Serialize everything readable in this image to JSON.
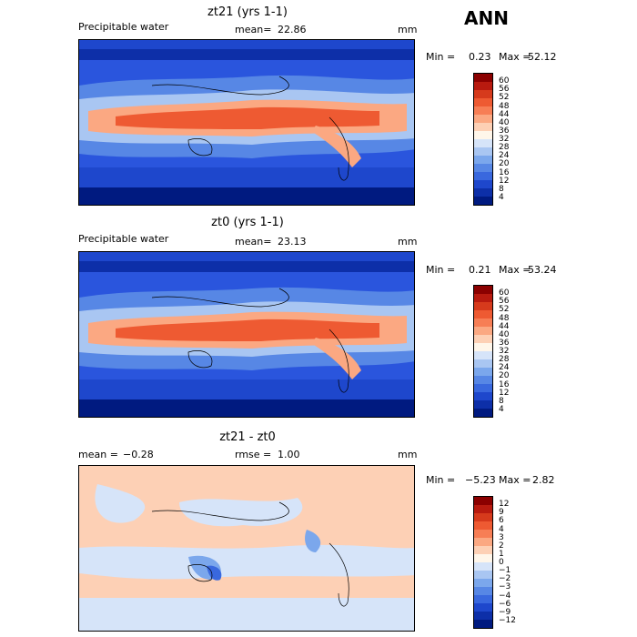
{
  "season": "ANN",
  "panels": [
    {
      "title": "zt21 (yrs 1-1)",
      "field": "Precipitable water",
      "mean_label": "mean=",
      "mean": "22.86",
      "units": "mm",
      "min_label": "Min =",
      "min": "0.23",
      "max_label": "Max =",
      "max": "52.12",
      "levels": [
        "60",
        "56",
        "52",
        "48",
        "44",
        "40",
        "36",
        "32",
        "28",
        "24",
        "20",
        "16",
        "12",
        "8",
        "4"
      ],
      "colors": [
        "#8b0000",
        "#b81a0f",
        "#d63a1c",
        "#ee5a32",
        "#f77e55",
        "#fba882",
        "#fdd0b5",
        "#fff6ea",
        "#d6e4f9",
        "#a9c6f2",
        "#7ba7ec",
        "#5787e5",
        "#3968de",
        "#1e47cc",
        "#0d2fa8",
        "#001a80"
      ]
    },
    {
      "title": "zt0 (yrs 1-1)",
      "field": "Precipitable water",
      "mean_label": "mean=",
      "mean": "23.13",
      "units": "mm",
      "min_label": "Min =",
      "min": "0.21",
      "max_label": "Max =",
      "max": "53.24",
      "levels": [
        "60",
        "56",
        "52",
        "48",
        "44",
        "40",
        "36",
        "32",
        "28",
        "24",
        "20",
        "16",
        "12",
        "8",
        "4"
      ],
      "colors": [
        "#8b0000",
        "#b81a0f",
        "#d63a1c",
        "#ee5a32",
        "#f77e55",
        "#fba882",
        "#fdd0b5",
        "#fff6ea",
        "#d6e4f9",
        "#a9c6f2",
        "#7ba7ec",
        "#5787e5",
        "#3968de",
        "#1e47cc",
        "#0d2fa8",
        "#001a80"
      ]
    },
    {
      "title": "zt21 - zt0",
      "mean_label": "mean =",
      "mean": "−0.28",
      "rmse_label": "rmse =",
      "rmse": "1.00",
      "units": "mm",
      "min_label": "Min =",
      "min": "−5.23",
      "max_label": "Max =",
      "max": "2.82",
      "levels": [
        "12",
        "9",
        "6",
        "4",
        "3",
        "2",
        "1",
        "0",
        "−1",
        "−2",
        "−3",
        "−4",
        "−6",
        "−9",
        "−12"
      ],
      "colors": [
        "#8b0000",
        "#b81a0f",
        "#d63a1c",
        "#ee5a32",
        "#f77e55",
        "#fba882",
        "#fdd0b5",
        "#fff6ea",
        "#d6e4f9",
        "#a9c6f2",
        "#7ba7ec",
        "#5787e5",
        "#3968de",
        "#1e47cc",
        "#0d2fa8",
        "#001a80"
      ]
    }
  ]
}
